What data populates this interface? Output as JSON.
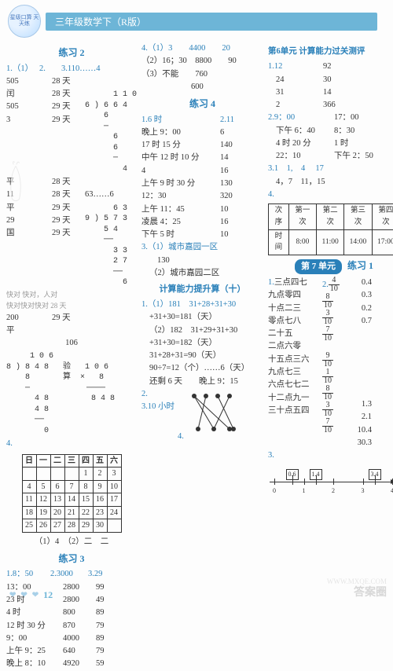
{
  "header": {
    "logo_text": "星级口算\n天天练",
    "title": "三年级数学下（R版）"
  },
  "col1": {
    "ex2_title": "练习 2",
    "ex2_q1": "1.（1）",
    "ex2_q2": "2.",
    "ex2_q3": "3.110……4",
    "ex2_pairs": [
      [
        "505",
        "28 天"
      ],
      [
        "闰",
        "28 天"
      ],
      [
        "505",
        "29 天"
      ],
      [
        "3",
        "29 天"
      ],
      [
        "平",
        "28 天"
      ],
      [
        "11",
        "28 天"
      ],
      [
        "平",
        "29 天"
      ],
      [
        "29",
        "29 天"
      ],
      [
        "国",
        "29 天"
      ]
    ],
    "ex2_foot1": "快对 快对，人对",
    "ex2_foot2": "快对快对快对 28 天",
    "ex2_200": "200",
    "ex2_29": "29 天",
    "ex2_ping": "平",
    "ex2_ldiv1": "      1 1 0\n6 ) 6 6 4\n    6\n    ─\n      6\n      6\n      ─\n        4",
    "ex2_63": "63……6",
    "ex2_ldiv2": "      6 3\n9 ) 5 7 3\n    5 4\n    ──\n      3 3\n      2 7\n      ──\n        6",
    "ex2_106": "106",
    "ex2_ldiv3": "     1 0 6\n8 ) 8 4 8   验   1 0 6\n    8       算  ×   8\n    ─            ────\n      4 8         8 4 8\n      4 8\n      ──\n        0",
    "q4": "4.",
    "cal_head": [
      "日",
      "一",
      "二",
      "三",
      "四",
      "五",
      "六"
    ],
    "cal_rows": [
      [
        "",
        "",
        "",
        "",
        "1",
        "2",
        "3"
      ],
      [
        "4",
        "5",
        "6",
        "7",
        "8",
        "9",
        "10"
      ],
      [
        "11",
        "12",
        "13",
        "14",
        "15",
        "16",
        "17"
      ],
      [
        "18",
        "19",
        "20",
        "21",
        "22",
        "23",
        "24"
      ],
      [
        "25",
        "26",
        "27",
        "28",
        "29",
        "30",
        ""
      ]
    ],
    "cal_ans": "（1）4　（2）二　二",
    "ex3_title": "练习 3",
    "ex3_top": [
      "1.8：50",
      "2.3000",
      "3.29"
    ],
    "ex3_rows": [
      [
        "13：00",
        "2800",
        "99"
      ],
      [
        "23 时",
        "2800",
        "49"
      ],
      [
        "4 时",
        "800",
        "89"
      ],
      [
        "12 时 30 分",
        "870",
        "79"
      ],
      [
        "9：00",
        "4000",
        "89"
      ],
      [
        "上午 9：25",
        "640",
        "79"
      ],
      [
        "晚上 8：10",
        "4920",
        "59"
      ]
    ]
  },
  "col2": {
    "l1": "4.（1）3　　4400　　20",
    "l2": "（2）16；30　8800　　90",
    "l3": "（3）不能　　760",
    "l4": "　　　　　　600",
    "ex4_title": "练习 4",
    "ex4_q1": "1.6 时",
    "ex4_q2": "2.11",
    "ex4_rows": [
      [
        "晚上 9：00",
        "6"
      ],
      [
        "17 时 15 分",
        "140"
      ],
      [
        "中午 12 时 10 分",
        "14"
      ],
      [
        "4",
        "16"
      ],
      [
        "上午 9 时 30 分",
        "130"
      ],
      [
        "12：30",
        "320"
      ],
      [
        "上午 11：45",
        "10"
      ],
      [
        "凌晨 4：25",
        "16"
      ],
      [
        "下午 5 时",
        "10"
      ]
    ],
    "ex4_3a": "3.（1）城市嘉园一区",
    "ex4_130": "130",
    "ex4_3b": "（2）城市嘉园二区",
    "imp_title": "计算能力提升算（十）",
    "imp_l1": "1.（1）181　31+28+31+30",
    "imp_l2": "+31+30=181（天）",
    "imp_l3": "（2）182　31+29+31+30",
    "imp_l4": "+31+30=182（天）",
    "imp_l5": "31+28+31=90（天）",
    "imp_l6": "90÷7=12（个）……6（天）",
    "imp_l7": "还剩 6 天　　晚上 9：15",
    "imp_l8": "晚上 9：15",
    "imp2": "2.",
    "imp3": "3.10 小时",
    "imp4": "4."
  },
  "col3": {
    "u6_title": "第6单元 计算能力过关测评",
    "u6_q1_rows": [
      [
        "1.12",
        "92"
      ],
      [
        "24",
        "30"
      ],
      [
        "31",
        "14"
      ],
      [
        "2",
        "366"
      ]
    ],
    "u6_q2_rows": [
      [
        "2.9：00",
        "17：00"
      ],
      [
        "下午 6：40",
        "8：30"
      ],
      [
        "4 时 20 分",
        "1 时"
      ],
      [
        "22：10",
        "下午 2：50"
      ]
    ],
    "u6_q3a": "3.1　1,　4　 17",
    "u6_q3b": "4，7　11，15",
    "u6_q4": "4.",
    "sched_head": [
      "次序",
      "第一次",
      "第二次",
      "第三次",
      "第四次"
    ],
    "sched_row": [
      "时间",
      "8:00",
      "11:00",
      "14:00",
      "17:00"
    ],
    "u7_badge": "第 7 单元",
    "u7_ex1": "练习 1",
    "u7_q1": "1.三点四七",
    "u7_q2_pre": "2.",
    "u7_col_words": [
      "三点四七",
      "九点零四",
      "十点二三",
      "零点七八",
      "二十五",
      "二点六零",
      "十五点三六",
      "九点七三",
      "六点七七二",
      "十二点九一",
      "三十点五四"
    ],
    "u7_fracs": [
      [
        "4",
        "10"
      ],
      [
        "8",
        "10"
      ],
      [
        "3",
        "10"
      ],
      [
        "7",
        "10"
      ]
    ],
    "u7_dec_col": [
      "0.4",
      "0.3",
      "0.2",
      "0.7"
    ],
    "u7_fracs2": [
      [
        "9",
        "10"
      ],
      [
        "1",
        "10"
      ],
      [
        "8",
        "10"
      ],
      [
        "3",
        "10"
      ],
      [
        "7",
        "10"
      ]
    ],
    "u7_end": [
      "1.3",
      "2.1",
      "10.4",
      "30.3"
    ],
    "u7_q3": "3.",
    "nline_ticks": [
      "0",
      "1",
      "2",
      "3",
      "4"
    ],
    "nline_boxes": [
      "0.6",
      "1.4",
      "3.4"
    ]
  },
  "footer": {
    "page": "12"
  },
  "wm1": "WWW.MXQE.COM",
  "wm2": "答案圈"
}
